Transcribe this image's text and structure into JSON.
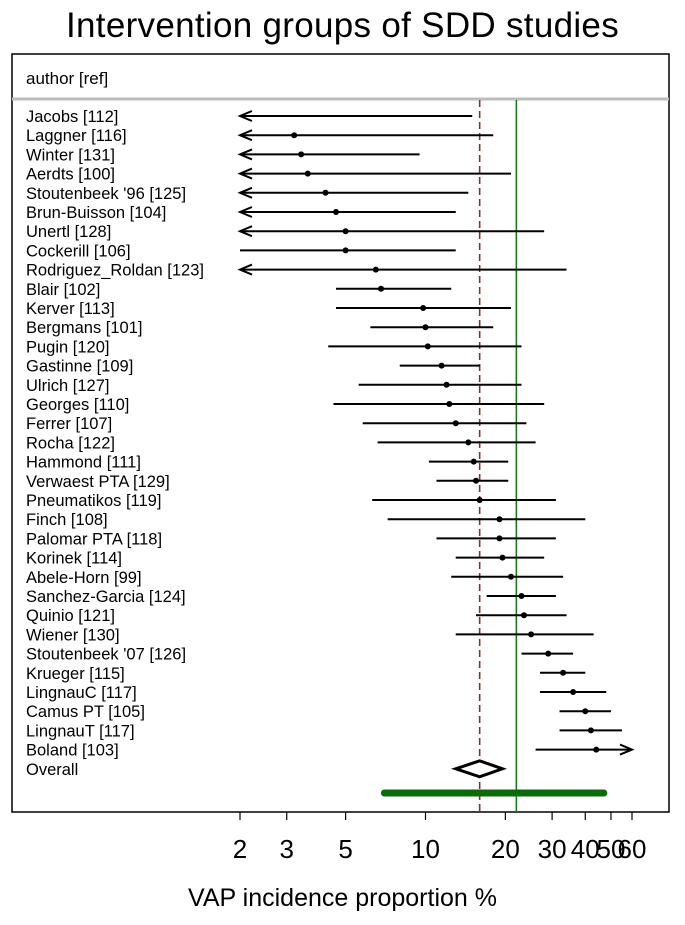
{
  "chart_data": {
    "type": "forest",
    "title": "Intervention groups of SDD studies",
    "column_header": "author [ref]",
    "xlabel": "VAP incidence proportion %",
    "x_scale": "log",
    "xlim": [
      2,
      60
    ],
    "x_ticks": [
      2,
      3,
      5,
      10,
      20,
      30,
      40,
      50,
      60
    ],
    "reference_lines": {
      "dashed": {
        "value": 16,
        "color": "#8b2e2e"
      },
      "solid": {
        "value": 22,
        "color": "#1a7a1a"
      }
    },
    "studies": [
      {
        "label": "Jacobs [112]",
        "est": null,
        "lo": 2,
        "hi": 15,
        "lo_arrow": true,
        "hi_arrow": false
      },
      {
        "label": "Laggner [116]",
        "est": 3.2,
        "lo": 2,
        "hi": 18,
        "lo_arrow": true,
        "hi_arrow": false
      },
      {
        "label": "Winter [131]",
        "est": 3.4,
        "lo": 2,
        "hi": 9.5,
        "lo_arrow": true,
        "hi_arrow": false
      },
      {
        "label": "Aerdts [100]",
        "est": 3.6,
        "lo": 2,
        "hi": 21,
        "lo_arrow": true,
        "hi_arrow": false
      },
      {
        "label": "Stoutenbeek '96 [125]",
        "est": 4.2,
        "lo": 2,
        "hi": 14.5,
        "lo_arrow": true,
        "hi_arrow": false
      },
      {
        "label": "Brun-Buisson [104]",
        "est": 4.6,
        "lo": 2,
        "hi": 13,
        "lo_arrow": true,
        "hi_arrow": false
      },
      {
        "label": "Unertl [128]",
        "est": 5,
        "lo": 2,
        "hi": 28,
        "lo_arrow": true,
        "hi_arrow": false
      },
      {
        "label": "Cockerill [106]",
        "est": 5,
        "lo": 2,
        "hi": 13,
        "lo_arrow": false,
        "hi_arrow": false
      },
      {
        "label": "Rodriguez_Roldan [123]",
        "est": 6.5,
        "lo": 2,
        "hi": 34,
        "lo_arrow": true,
        "hi_arrow": false
      },
      {
        "label": "Blair [102]",
        "est": 6.8,
        "lo": 4.6,
        "hi": 12.5,
        "lo_arrow": false,
        "hi_arrow": false
      },
      {
        "label": "Kerver [113]",
        "est": 9.8,
        "lo": 4.6,
        "hi": 21,
        "lo_arrow": false,
        "hi_arrow": false
      },
      {
        "label": "Bergmans [101]",
        "est": 10,
        "lo": 6.2,
        "hi": 18,
        "lo_arrow": false,
        "hi_arrow": false
      },
      {
        "label": "Pugin [120]",
        "est": 10.2,
        "lo": 4.3,
        "hi": 23,
        "lo_arrow": false,
        "hi_arrow": false
      },
      {
        "label": "Gastinne [109]",
        "est": 11.5,
        "lo": 8,
        "hi": 16,
        "lo_arrow": false,
        "hi_arrow": false
      },
      {
        "label": "Ulrich [127]",
        "est": 12,
        "lo": 5.6,
        "hi": 23,
        "lo_arrow": false,
        "hi_arrow": false
      },
      {
        "label": "Georges [110]",
        "est": 12.3,
        "lo": 4.5,
        "hi": 28,
        "lo_arrow": false,
        "hi_arrow": false
      },
      {
        "label": "Ferrer [107]",
        "est": 13,
        "lo": 5.8,
        "hi": 24,
        "lo_arrow": false,
        "hi_arrow": false
      },
      {
        "label": "Rocha [122]",
        "est": 14.5,
        "lo": 6.6,
        "hi": 26,
        "lo_arrow": false,
        "hi_arrow": false
      },
      {
        "label": "Hammond [111]",
        "est": 15.2,
        "lo": 10.3,
        "hi": 20.5,
        "lo_arrow": false,
        "hi_arrow": false
      },
      {
        "label": "Verwaest PTA [129]",
        "est": 15.5,
        "lo": 11,
        "hi": 20.5,
        "lo_arrow": false,
        "hi_arrow": false
      },
      {
        "label": "Pneumatikos [119]",
        "est": 16,
        "lo": 6.3,
        "hi": 31,
        "lo_arrow": false,
        "hi_arrow": false
      },
      {
        "label": "Finch [108]",
        "est": 19,
        "lo": 7.2,
        "hi": 40,
        "lo_arrow": false,
        "hi_arrow": false
      },
      {
        "label": "Palomar PTA [118]",
        "est": 19,
        "lo": 11,
        "hi": 31,
        "lo_arrow": false,
        "hi_arrow": false
      },
      {
        "label": "Korinek [114]",
        "est": 19.5,
        "lo": 13,
        "hi": 28,
        "lo_arrow": false,
        "hi_arrow": false
      },
      {
        "label": "Abele-Horn [99]",
        "est": 21,
        "lo": 12.5,
        "hi": 33,
        "lo_arrow": false,
        "hi_arrow": false
      },
      {
        "label": "Sanchez-Garcia [124]",
        "est": 23,
        "lo": 17,
        "hi": 31,
        "lo_arrow": false,
        "hi_arrow": false
      },
      {
        "label": "Quinio [121]",
        "est": 23.5,
        "lo": 15.5,
        "hi": 34,
        "lo_arrow": false,
        "hi_arrow": false
      },
      {
        "label": "Wiener [130]",
        "est": 25,
        "lo": 13,
        "hi": 43,
        "lo_arrow": false,
        "hi_arrow": false
      },
      {
        "label": "Stoutenbeek '07 [126]",
        "est": 29,
        "lo": 23,
        "hi": 36,
        "lo_arrow": false,
        "hi_arrow": false
      },
      {
        "label": "Krueger [115]",
        "est": 33,
        "lo": 27,
        "hi": 40,
        "lo_arrow": false,
        "hi_arrow": false
      },
      {
        "label": "LingnauC [117]",
        "est": 36,
        "lo": 27,
        "hi": 48,
        "lo_arrow": false,
        "hi_arrow": false
      },
      {
        "label": "Camus PT [105]",
        "est": 40,
        "lo": 32,
        "hi": 50,
        "lo_arrow": false,
        "hi_arrow": false
      },
      {
        "label": "LingnauT [117]",
        "est": 42,
        "lo": 32,
        "hi": 55,
        "lo_arrow": false,
        "hi_arrow": false
      },
      {
        "label": "Boland [103]",
        "est": 44,
        "lo": 26,
        "hi": 60,
        "lo_arrow": false,
        "hi_arrow": true
      }
    ],
    "overall": {
      "label": "Overall",
      "est": 16,
      "lo": 13,
      "hi": 19.5
    },
    "prediction_interval": {
      "lo": 7,
      "hi": 47,
      "color": "#0b6b0b"
    }
  }
}
